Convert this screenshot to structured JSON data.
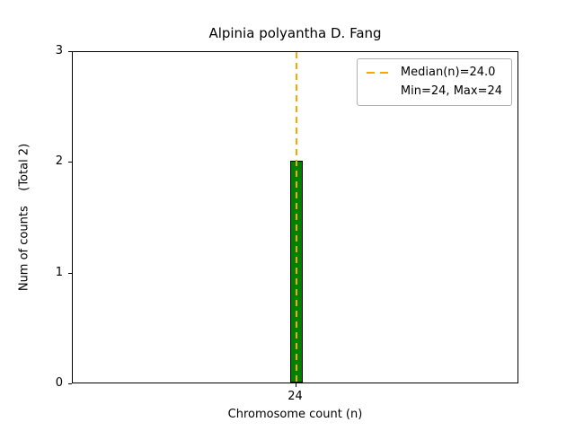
{
  "figure": {
    "background": "#ffffff"
  },
  "chart_data": {
    "type": "bar",
    "title": "Alpinia polyantha D. Fang",
    "xlabel": "Chromosome count (n)",
    "ylabel": "Num of counts    (Total 2)",
    "categories": [
      24
    ],
    "values": [
      2
    ],
    "ylim": [
      0,
      3
    ],
    "y_ticks": [
      0,
      1,
      2,
      3
    ],
    "total": 2,
    "median": 24.0,
    "min": 24,
    "max": 24,
    "bar_color": "#008000",
    "bar_edge_color": "#000000",
    "median_line_color": "#ffa500",
    "legend": [
      "Median(n)=24.0",
      "Min=24, Max=24"
    ],
    "legend_position": "upper right",
    "grid": false
  }
}
